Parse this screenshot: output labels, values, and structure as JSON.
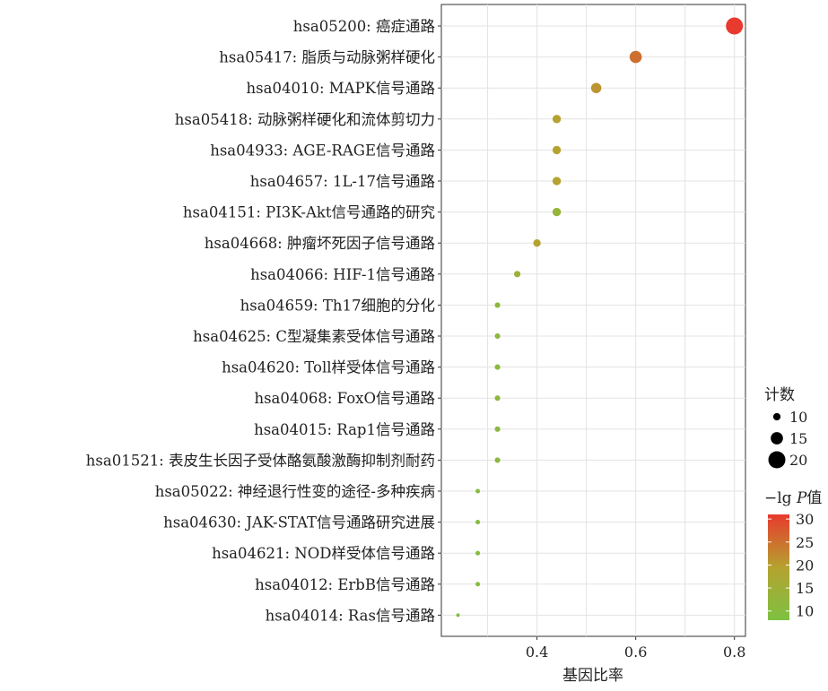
{
  "chart_data": {
    "type": "scatter",
    "title": "",
    "xlabel": "基因比率",
    "ylabel": "",
    "xlim": [
      0.22,
      0.83
    ],
    "xticks": [
      0.4,
      0.6,
      0.8
    ],
    "grid": true,
    "categories": [
      "hsa05200: 癌症通路",
      "hsa05417: 脂质与动脉粥样硬化",
      "hsa04010: MAPK信号通路",
      "hsa05418: 动脉粥样硬化和流体剪切力",
      "hsa04933: AGE-RAGE信号通路",
      "hsa04657: 1L-17信号通路",
      "hsa04151: PI3K-Akt信号通路的研究",
      "hsa04668: 肿瘤坏死因子信号通路",
      "hsa04066: HIF-1信号通路",
      "hsa04659: Th17细胞的分化",
      "hsa04625: C型凝集素受体信号通路",
      "hsa04620: Toll样受体信号通路",
      "hsa04068: FoxO信号通路",
      "hsa04015: Rap1信号通路",
      "hsa01521: 表皮生长因子受体酪氨酸激酶抑制剂耐药",
      "hsa05022: 神经退行性变的途径-多种疾病",
      "hsa04630: JAK-STAT信号通路研究进展",
      "hsa04621: NOD样受体信号通路",
      "hsa04012: ErbB信号通路",
      "hsa04014: Ras信号通路"
    ],
    "gene_ratio": [
      0.8,
      0.6,
      0.52,
      0.44,
      0.44,
      0.44,
      0.44,
      0.4,
      0.36,
      0.32,
      0.32,
      0.32,
      0.32,
      0.32,
      0.32,
      0.28,
      0.28,
      0.28,
      0.28,
      0.24
    ],
    "count": [
      20,
      15,
      13,
      11,
      11,
      11,
      11,
      10,
      9,
      8,
      8,
      8,
      8,
      8,
      8,
      7,
      7,
      7,
      7,
      6
    ],
    "neg_log_p": [
      31,
      25,
      21,
      19.5,
      19.5,
      19.5,
      13,
      19.5,
      14,
      11.5,
      11,
      11,
      11,
      11,
      11,
      10,
      10,
      10,
      10,
      9
    ],
    "legend": {
      "size_title": "计数",
      "size_entries": [
        {
          "label": "10",
          "value": 10
        },
        {
          "label": "15",
          "value": 15
        },
        {
          "label": "20",
          "value": 20
        }
      ],
      "color_title_prefix": "−lg ",
      "color_title_italic": "P",
      "color_title_suffix": "值",
      "color_ticks": [
        "30",
        "25",
        "20",
        "15",
        "10"
      ],
      "color_tick_values": [
        30,
        25,
        20,
        15,
        10
      ],
      "color_range": [
        8,
        31
      ],
      "color_low": "#7dc142",
      "color_mid": "#b5a230",
      "color_high": "#e83a2e",
      "placement": "right"
    }
  }
}
